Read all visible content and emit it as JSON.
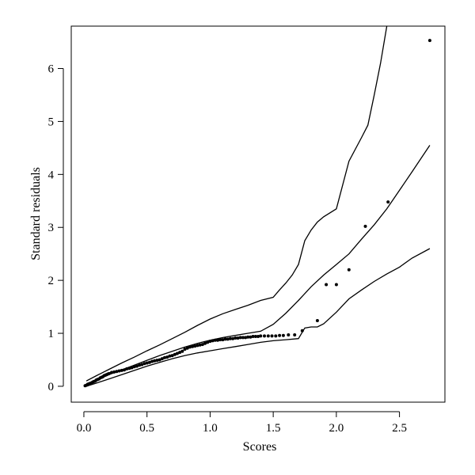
{
  "chart_data": {
    "type": "scatter",
    "xlabel": "Scores",
    "ylabel": "Standard residuals",
    "xlim": [
      -0.1,
      2.86
    ],
    "ylim": [
      -0.3,
      6.8
    ],
    "xticks": [
      0.0,
      0.5,
      1.0,
      1.5,
      2.0,
      2.5
    ],
    "xtick_labels": [
      "0.0",
      "0.5",
      "1.0",
      "1.5",
      "2.0",
      "2.5"
    ],
    "yticks": [
      0,
      1,
      2,
      3,
      4,
      5,
      6
    ],
    "ytick_labels": [
      "0",
      "1",
      "2",
      "3",
      "4",
      "5",
      "6"
    ],
    "grid": false,
    "points": [
      [
        0.01,
        0.01
      ],
      [
        0.02,
        0.02
      ],
      [
        0.03,
        0.03
      ],
      [
        0.04,
        0.04
      ],
      [
        0.05,
        0.05
      ],
      [
        0.06,
        0.06
      ],
      [
        0.07,
        0.08
      ],
      [
        0.08,
        0.09
      ],
      [
        0.09,
        0.1
      ],
      [
        0.1,
        0.12
      ],
      [
        0.11,
        0.13
      ],
      [
        0.12,
        0.14
      ],
      [
        0.13,
        0.16
      ],
      [
        0.14,
        0.17
      ],
      [
        0.15,
        0.18
      ],
      [
        0.16,
        0.2
      ],
      [
        0.17,
        0.21
      ],
      [
        0.18,
        0.22
      ],
      [
        0.19,
        0.23
      ],
      [
        0.2,
        0.24
      ],
      [
        0.22,
        0.26
      ],
      [
        0.24,
        0.27
      ],
      [
        0.26,
        0.28
      ],
      [
        0.28,
        0.29
      ],
      [
        0.3,
        0.3
      ],
      [
        0.32,
        0.31
      ],
      [
        0.34,
        0.33
      ],
      [
        0.36,
        0.34
      ],
      [
        0.38,
        0.35
      ],
      [
        0.4,
        0.37
      ],
      [
        0.42,
        0.38
      ],
      [
        0.44,
        0.4
      ],
      [
        0.46,
        0.41
      ],
      [
        0.48,
        0.43
      ],
      [
        0.5,
        0.44
      ],
      [
        0.52,
        0.45
      ],
      [
        0.54,
        0.47
      ],
      [
        0.56,
        0.48
      ],
      [
        0.58,
        0.49
      ],
      [
        0.6,
        0.5
      ],
      [
        0.62,
        0.52
      ],
      [
        0.64,
        0.54
      ],
      [
        0.66,
        0.55
      ],
      [
        0.68,
        0.57
      ],
      [
        0.7,
        0.58
      ],
      [
        0.72,
        0.6
      ],
      [
        0.74,
        0.62
      ],
      [
        0.76,
        0.64
      ],
      [
        0.78,
        0.66
      ],
      [
        0.8,
        0.7
      ],
      [
        0.82,
        0.72
      ],
      [
        0.84,
        0.74
      ],
      [
        0.86,
        0.75
      ],
      [
        0.88,
        0.76
      ],
      [
        0.9,
        0.77
      ],
      [
        0.92,
        0.78
      ],
      [
        0.94,
        0.79
      ],
      [
        0.96,
        0.81
      ],
      [
        0.98,
        0.83
      ],
      [
        1.0,
        0.85
      ],
      [
        1.02,
        0.86
      ],
      [
        1.04,
        0.87
      ],
      [
        1.06,
        0.87
      ],
      [
        1.08,
        0.88
      ],
      [
        1.1,
        0.88
      ],
      [
        1.12,
        0.89
      ],
      [
        1.14,
        0.89
      ],
      [
        1.16,
        0.9
      ],
      [
        1.18,
        0.9
      ],
      [
        1.2,
        0.91
      ],
      [
        1.22,
        0.91
      ],
      [
        1.24,
        0.92
      ],
      [
        1.26,
        0.92
      ],
      [
        1.28,
        0.92
      ],
      [
        1.3,
        0.93
      ],
      [
        1.32,
        0.93
      ],
      [
        1.34,
        0.94
      ],
      [
        1.36,
        0.94
      ],
      [
        1.38,
        0.94
      ],
      [
        1.4,
        0.95
      ],
      [
        1.43,
        0.95
      ],
      [
        1.46,
        0.95
      ],
      [
        1.49,
        0.95
      ],
      [
        1.52,
        0.95
      ],
      [
        1.55,
        0.96
      ],
      [
        1.58,
        0.96
      ],
      [
        1.62,
        0.97
      ],
      [
        1.67,
        0.97
      ],
      [
        1.73,
        1.05
      ],
      [
        1.85,
        1.24
      ],
      [
        1.92,
        1.92
      ],
      [
        2.0,
        1.92
      ],
      [
        2.1,
        2.2
      ],
      [
        2.23,
        3.02
      ],
      [
        2.41,
        3.48
      ],
      [
        2.74,
        6.53
      ]
    ],
    "upper_band": [
      [
        0.02,
        0.1
      ],
      [
        0.1,
        0.2
      ],
      [
        0.2,
        0.32
      ],
      [
        0.3,
        0.44
      ],
      [
        0.4,
        0.55
      ],
      [
        0.5,
        0.67
      ],
      [
        0.6,
        0.78
      ],
      [
        0.7,
        0.9
      ],
      [
        0.8,
        1.02
      ],
      [
        0.9,
        1.15
      ],
      [
        1.0,
        1.27
      ],
      [
        1.1,
        1.37
      ],
      [
        1.2,
        1.45
      ],
      [
        1.3,
        1.53
      ],
      [
        1.4,
        1.62
      ],
      [
        1.5,
        1.68
      ],
      [
        1.55,
        1.82
      ],
      [
        1.6,
        1.95
      ],
      [
        1.65,
        2.1
      ],
      [
        1.7,
        2.3
      ],
      [
        1.75,
        2.75
      ],
      [
        1.8,
        2.95
      ],
      [
        1.85,
        3.1
      ],
      [
        1.9,
        3.2
      ],
      [
        2.0,
        3.35
      ],
      [
        2.1,
        4.25
      ],
      [
        2.2,
        4.7
      ],
      [
        2.25,
        4.93
      ],
      [
        2.3,
        5.5
      ],
      [
        2.35,
        6.1
      ],
      [
        2.4,
        6.8
      ]
    ],
    "middle_band": [
      [
        0.02,
        0.05
      ],
      [
        0.1,
        0.12
      ],
      [
        0.2,
        0.22
      ],
      [
        0.3,
        0.31
      ],
      [
        0.4,
        0.4
      ],
      [
        0.5,
        0.49
      ],
      [
        0.6,
        0.58
      ],
      [
        0.7,
        0.66
      ],
      [
        0.8,
        0.74
      ],
      [
        0.9,
        0.81
      ],
      [
        1.0,
        0.87
      ],
      [
        1.1,
        0.92
      ],
      [
        1.2,
        0.96
      ],
      [
        1.3,
        1.0
      ],
      [
        1.4,
        1.04
      ],
      [
        1.5,
        1.17
      ],
      [
        1.6,
        1.38
      ],
      [
        1.7,
        1.62
      ],
      [
        1.8,
        1.88
      ],
      [
        1.9,
        2.1
      ],
      [
        2.0,
        2.3
      ],
      [
        2.1,
        2.5
      ],
      [
        2.2,
        2.78
      ],
      [
        2.3,
        3.05
      ],
      [
        2.4,
        3.35
      ],
      [
        2.5,
        3.7
      ],
      [
        2.6,
        4.05
      ],
      [
        2.74,
        4.55
      ]
    ],
    "lower_band": [
      [
        0.02,
        0.0
      ],
      [
        0.1,
        0.06
      ],
      [
        0.2,
        0.14
      ],
      [
        0.3,
        0.22
      ],
      [
        0.4,
        0.3
      ],
      [
        0.5,
        0.38
      ],
      [
        0.6,
        0.45
      ],
      [
        0.7,
        0.52
      ],
      [
        0.8,
        0.58
      ],
      [
        0.9,
        0.63
      ],
      [
        1.0,
        0.67
      ],
      [
        1.1,
        0.71
      ],
      [
        1.2,
        0.75
      ],
      [
        1.3,
        0.79
      ],
      [
        1.4,
        0.83
      ],
      [
        1.5,
        0.86
      ],
      [
        1.6,
        0.88
      ],
      [
        1.7,
        0.9
      ],
      [
        1.75,
        1.1
      ],
      [
        1.8,
        1.12
      ],
      [
        1.85,
        1.12
      ],
      [
        1.9,
        1.18
      ],
      [
        2.0,
        1.4
      ],
      [
        2.1,
        1.65
      ],
      [
        2.2,
        1.82
      ],
      [
        2.3,
        1.98
      ],
      [
        2.4,
        2.12
      ],
      [
        2.5,
        2.25
      ],
      [
        2.6,
        2.42
      ],
      [
        2.74,
        2.6
      ]
    ]
  }
}
